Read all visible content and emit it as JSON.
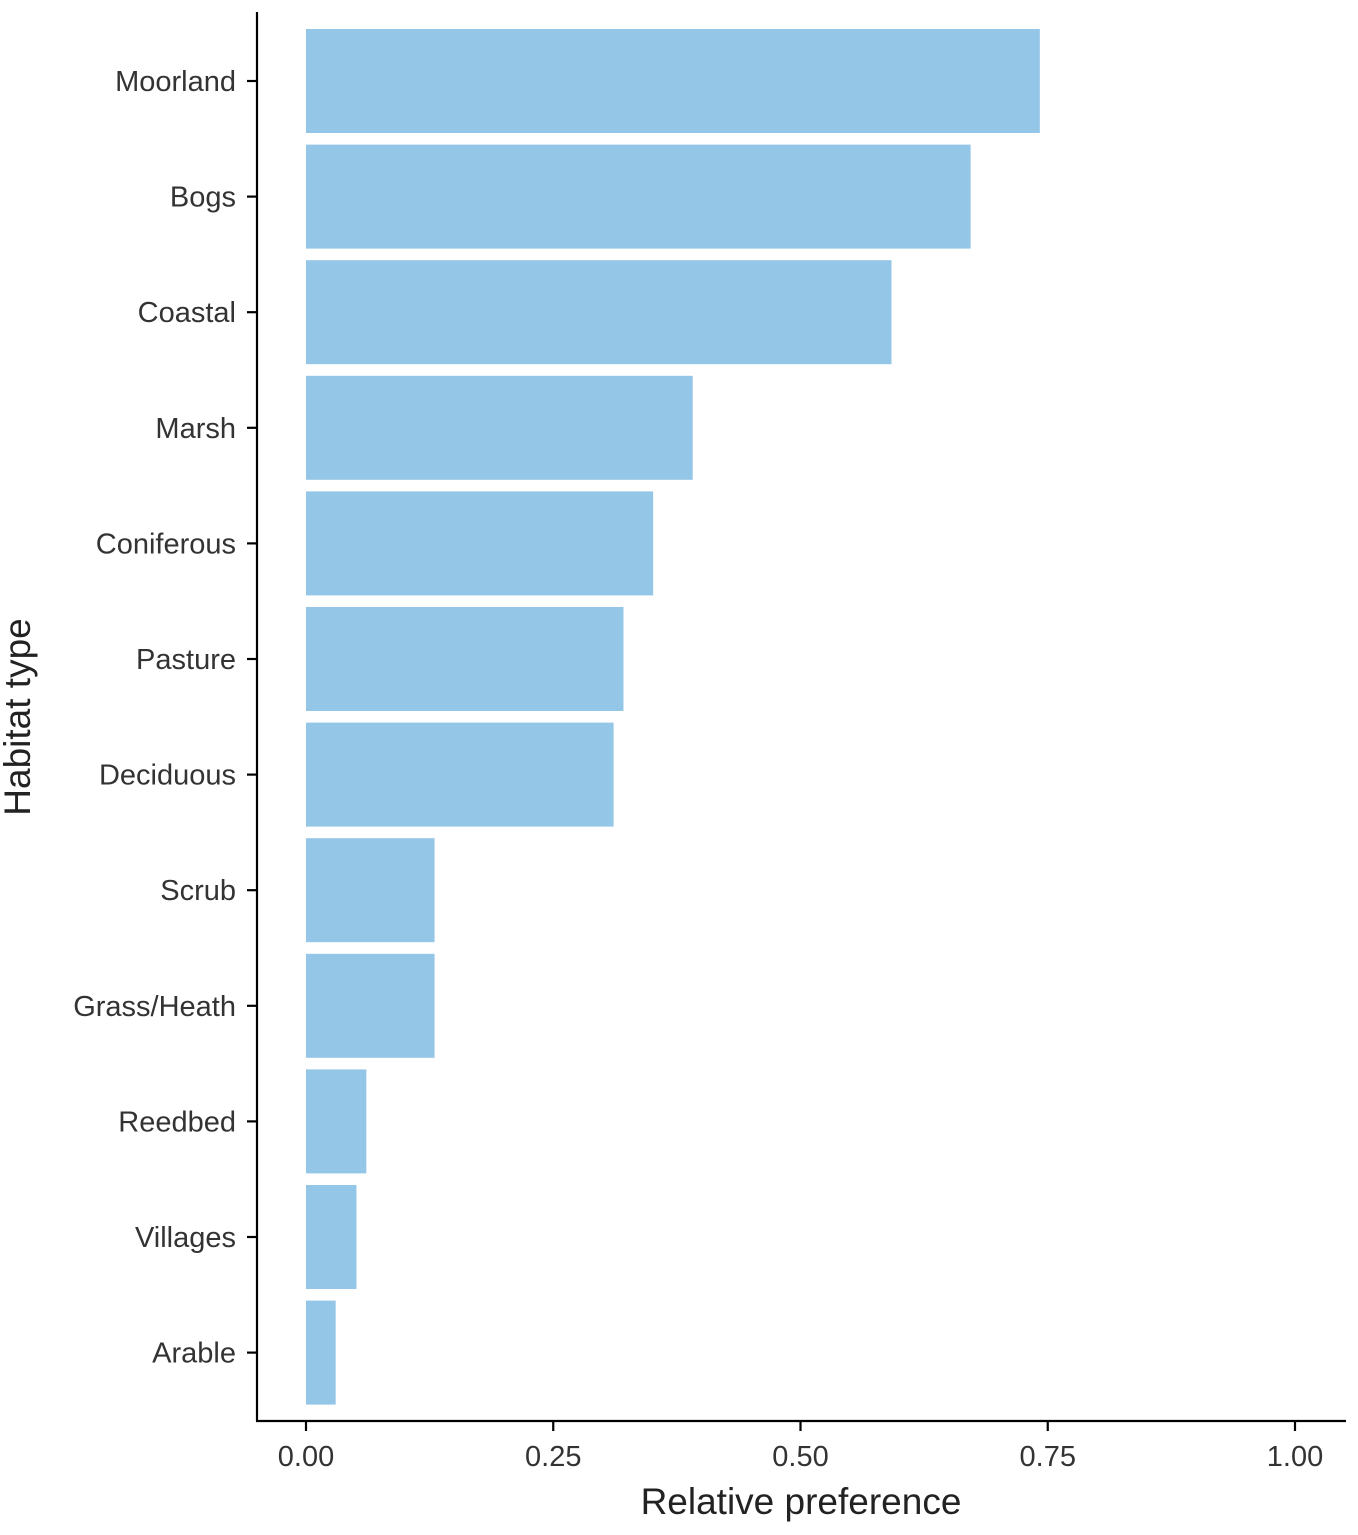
{
  "chart_data": {
    "type": "bar",
    "orientation": "horizontal",
    "title": "",
    "xlabel": "Relative preference",
    "ylabel": "Habitat type",
    "xlim": [
      0,
      1
    ],
    "xticks": [
      "0.00",
      "0.25",
      "0.50",
      "0.75",
      "1.00"
    ],
    "xtick_values": [
      0,
      0.25,
      0.5,
      0.75,
      1.0
    ],
    "categories": [
      "Moorland",
      "Bogs",
      "Coastal",
      "Marsh",
      "Coniferous",
      "Pasture",
      "Deciduous",
      "Scrub",
      "Grass/Heath",
      "Reedbed",
      "Villages",
      "Arable"
    ],
    "values": [
      0.742,
      0.672,
      0.592,
      0.391,
      0.351,
      0.321,
      0.311,
      0.13,
      0.13,
      0.061,
      0.051,
      0.03
    ],
    "bar_color": "#94c6e7",
    "grid": false,
    "legend": "none"
  }
}
